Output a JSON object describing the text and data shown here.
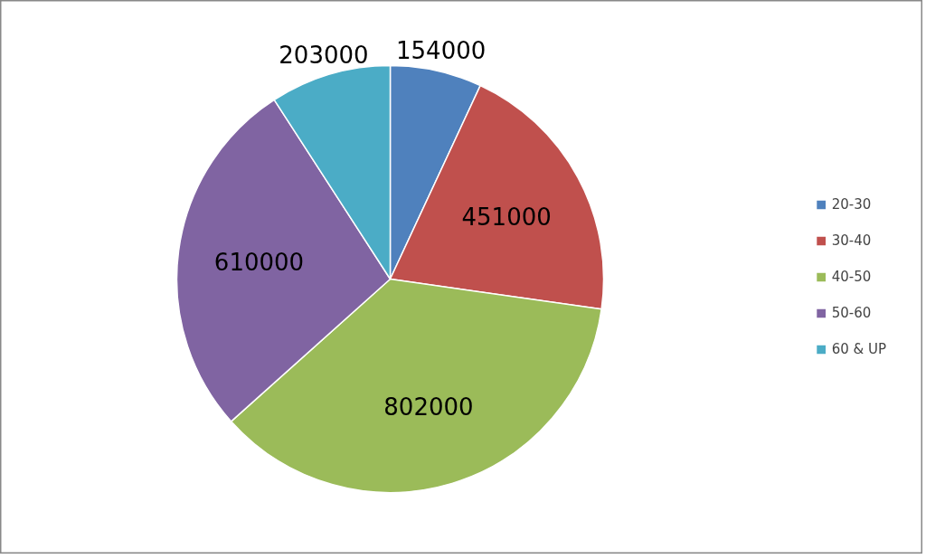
{
  "chart_data": {
    "type": "pie",
    "categories": [
      "20-30",
      "30-40",
      "40-50",
      "50-60",
      "60 & UP"
    ],
    "values": [
      154000,
      451000,
      802000,
      610000,
      203000
    ],
    "colors": [
      "#4f81bd",
      "#c0504d",
      "#9bbb59",
      "#8064a2",
      "#4bacc6"
    ],
    "data_labels": true,
    "legend": "right"
  }
}
